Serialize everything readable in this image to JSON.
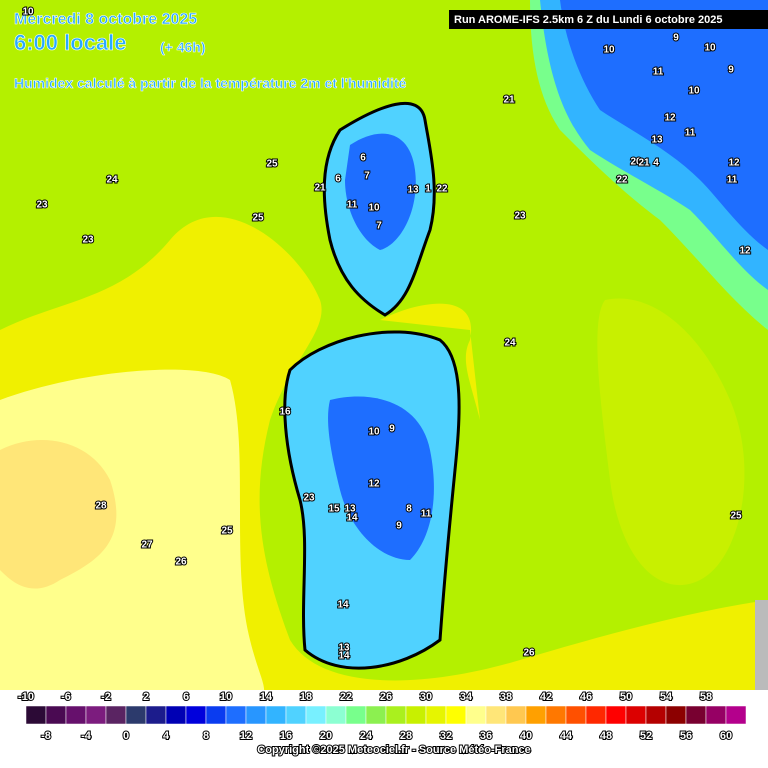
{
  "header": {
    "date": "Mercredi 8 octobre 2025",
    "time": "6:00 locale",
    "lead": "(+ 46h)",
    "description": "Humidex calculé à partir de la température 2m et l'humidité",
    "run": "Run AROME-IFS 2.5km 6 Z du Lundi 6 octobre 2025"
  },
  "contour_labels": [
    10,
    24,
    23,
    23,
    25,
    25,
    6,
    6,
    7,
    21,
    11,
    10,
    7,
    13,
    1,
    22,
    23,
    22,
    21,
    9,
    10,
    10,
    11,
    9,
    10,
    12,
    13,
    11,
    20,
    21,
    4,
    12,
    11,
    12,
    24,
    16,
    10,
    9,
    12,
    23,
    15,
    13,
    14,
    8,
    11,
    9,
    28,
    25,
    27,
    26,
    25,
    14,
    13,
    14,
    26
  ],
  "colorbar": {
    "top_labels": [
      -10,
      -6,
      -2,
      2,
      6,
      10,
      14,
      18,
      22,
      26,
      30,
      34,
      38,
      42,
      46,
      50,
      54,
      58
    ],
    "bottom_labels": [
      -8,
      -4,
      0,
      4,
      8,
      12,
      16,
      20,
      24,
      28,
      32,
      36,
      40,
      44,
      48,
      52,
      56,
      60
    ],
    "colors": [
      "#2c0a36",
      "#4a0a52",
      "#66106c",
      "#7c1c7e",
      "#5a2462",
      "#2c3a6c",
      "#1c1c8c",
      "#0000b4",
      "#0000dc",
      "#0a3cf0",
      "#1e6eff",
      "#2896ff",
      "#32b4ff",
      "#50d2ff",
      "#78f0ff",
      "#8cffd2",
      "#78ff8c",
      "#8cf050",
      "#aaf01e",
      "#c8f000",
      "#e6f500",
      "#ffff00",
      "#ffff8c",
      "#ffe678",
      "#ffc850",
      "#ffa000",
      "#ff7800",
      "#ff5000",
      "#ff2800",
      "#ff0000",
      "#dc0000",
      "#b40000",
      "#8c0000",
      "#780030",
      "#960064",
      "#b4008c"
    ]
  },
  "copyright": "Copyright ©2025 Meteociel.fr - Source Météo-France"
}
